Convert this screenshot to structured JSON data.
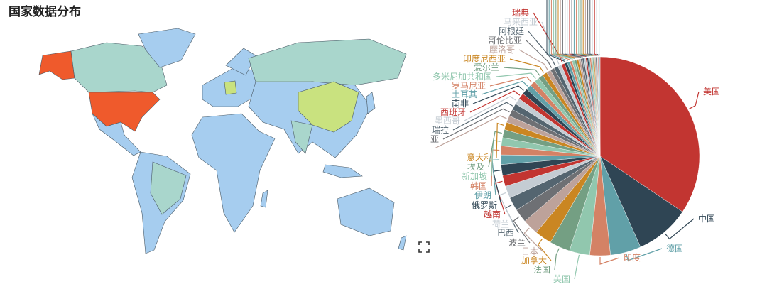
{
  "title": "国家数据分布",
  "map": {
    "colors": {
      "default": "#a6cdef",
      "teal": "#a9d6cc",
      "usa": "#ef5a2c",
      "china": "#c9e27f",
      "germany": "#c9e27f",
      "border": "#555"
    },
    "highlighted": [
      "美国",
      "中国",
      "德国"
    ],
    "fullscreen_icon": "fullscreen-icon"
  },
  "chart_data": {
    "type": "pie",
    "palette": [
      "#c23531",
      "#2f4554",
      "#61a0a8",
      "#d48265",
      "#91c7ae",
      "#749f83",
      "#ca8622",
      "#bda29a",
      "#6e7074",
      "#546570",
      "#c4ccd3"
    ],
    "slices": [
      {
        "name": "美国",
        "value": 31
      },
      {
        "name": "中国",
        "value": 8
      },
      {
        "name": "德国",
        "value": 4.5
      },
      {
        "name": "印度",
        "value": 3
      },
      {
        "name": "英国",
        "value": 3
      },
      {
        "name": "法国",
        "value": 3
      },
      {
        "name": "加拿大",
        "value": 2.5
      },
      {
        "name": "日本",
        "value": 2.3
      },
      {
        "name": "波兰",
        "value": 2
      },
      {
        "name": "巴西",
        "value": 2
      },
      {
        "name": "荷兰",
        "value": 1.8
      },
      {
        "name": "越南",
        "value": 1.6
      },
      {
        "name": "俄罗斯",
        "value": 1.6
      },
      {
        "name": "伊朗",
        "value": 1.4
      },
      {
        "name": "韩国",
        "value": 1.3
      },
      {
        "name": "新加坡",
        "value": 1.2
      },
      {
        "name": "埃及",
        "value": 1.2
      },
      {
        "name": "意大利",
        "value": 1.1
      },
      {
        "name": "",
        "value": 1
      },
      {
        "name": "亚",
        "value": 1
      },
      {
        "name": "瑞拉",
        "value": 0.95
      },
      {
        "name": "墨西哥",
        "value": 0.9
      },
      {
        "name": "西班牙",
        "value": 0.9
      },
      {
        "name": "南非",
        "value": 0.85
      },
      {
        "name": "土耳其",
        "value": 0.8
      },
      {
        "name": "罗马尼亚",
        "value": 0.8
      },
      {
        "name": "多米尼加共和国",
        "value": 0.75
      },
      {
        "name": "爱尔兰",
        "value": 0.7
      },
      {
        "name": "印度尼西亚",
        "value": 0.7
      },
      {
        "name": "摩洛哥",
        "value": 0.65
      },
      {
        "name": "哥伦比亚",
        "value": 0.6
      },
      {
        "name": "阿根廷",
        "value": 0.6
      },
      {
        "name": "马来西亚",
        "value": 0.55
      },
      {
        "name": "瑞典",
        "value": 0.5
      }
    ],
    "unlabeled_values": [
      0.4,
      0.4,
      0.35,
      0.35,
      0.3,
      0.3,
      0.3,
      0.25,
      0.25,
      0.25,
      0.2,
      0.2,
      0.2,
      0.2,
      0.2,
      0.15,
      0.15,
      0.15,
      0.15,
      0.1,
      0.1,
      0.1,
      0.1,
      0.1
    ]
  }
}
